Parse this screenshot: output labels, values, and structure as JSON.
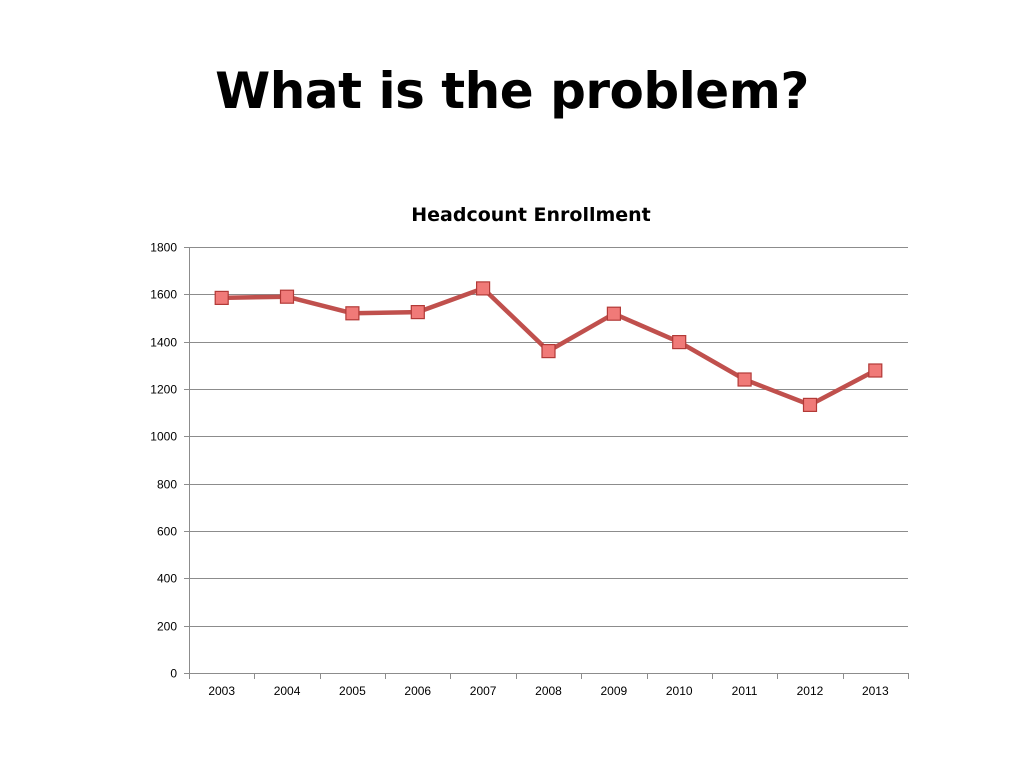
{
  "slide": {
    "title": "What is the problem?"
  },
  "colors": {
    "line": "#c0504d",
    "marker_fill": "#f07a78",
    "marker_stroke": "#b23a37",
    "grid": "#8c8c8c",
    "axis": "#8c8c8c"
  },
  "chart_data": {
    "type": "line",
    "title": "Headcount Enrollment",
    "xlabel": "",
    "ylabel": "",
    "categories": [
      "2003",
      "2004",
      "2005",
      "2006",
      "2007",
      "2008",
      "2009",
      "2010",
      "2011",
      "2012",
      "2013"
    ],
    "series": [
      {
        "values": [
          1585,
          1590,
          1520,
          1525,
          1625,
          1360,
          1518,
          1398,
          1240,
          1133,
          1278
        ]
      }
    ],
    "ylim": [
      0,
      1800
    ],
    "yticks": [
      0,
      200,
      400,
      600,
      800,
      1000,
      1200,
      1400,
      1600,
      1800
    ],
    "grid": true,
    "legend": "none"
  }
}
